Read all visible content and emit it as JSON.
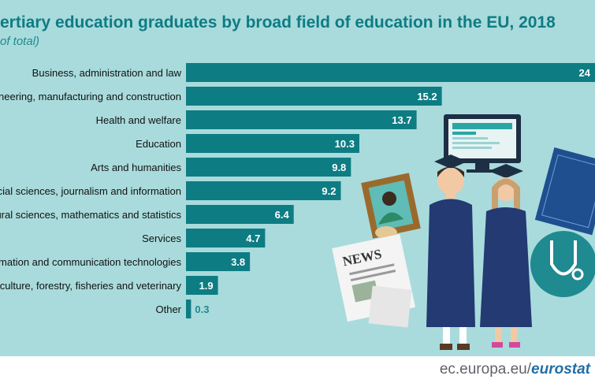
{
  "header": {
    "title": "ertiary education graduates by broad field of education in the EU, 2018",
    "subtitle": "of total)"
  },
  "chart_data": {
    "type": "bar",
    "orientation": "horizontal",
    "categories": [
      "Business, administration and law",
      "gineering, manufacturing and construction",
      "Health and welfare",
      "Education",
      "Arts and humanities",
      "Social sciences, journalism and information",
      "atural sciences, mathematics and statistics",
      "Services",
      "ormation and communication technologies",
      "riculture, forestry, fisheries and veterinary",
      "Other"
    ],
    "values": [
      24.3,
      15.2,
      13.7,
      10.3,
      9.8,
      9.2,
      6.4,
      4.7,
      3.8,
      1.9,
      0.3
    ],
    "value_labels": [
      "24",
      "15.2",
      "13.7",
      "10.3",
      "9.8",
      "9.2",
      "6.4",
      "4.7",
      "3.8",
      "1.9",
      "0.3"
    ],
    "xlim": [
      0,
      24.3
    ],
    "grid": false,
    "colors": {
      "bar": "#0e7c83",
      "background": "#a9dbdc",
      "label_inside": "#ffffff",
      "label_outside": "#1f8a90"
    }
  },
  "footer": {
    "site": "ec.europa.eu/",
    "brand": "eurostat"
  },
  "illustration": {
    "icons": [
      "graduate-students-icon",
      "computer-monitor-icon",
      "painting-icon",
      "newspaper-icon",
      "stethoscope-icon",
      "blueprint-icon"
    ]
  }
}
